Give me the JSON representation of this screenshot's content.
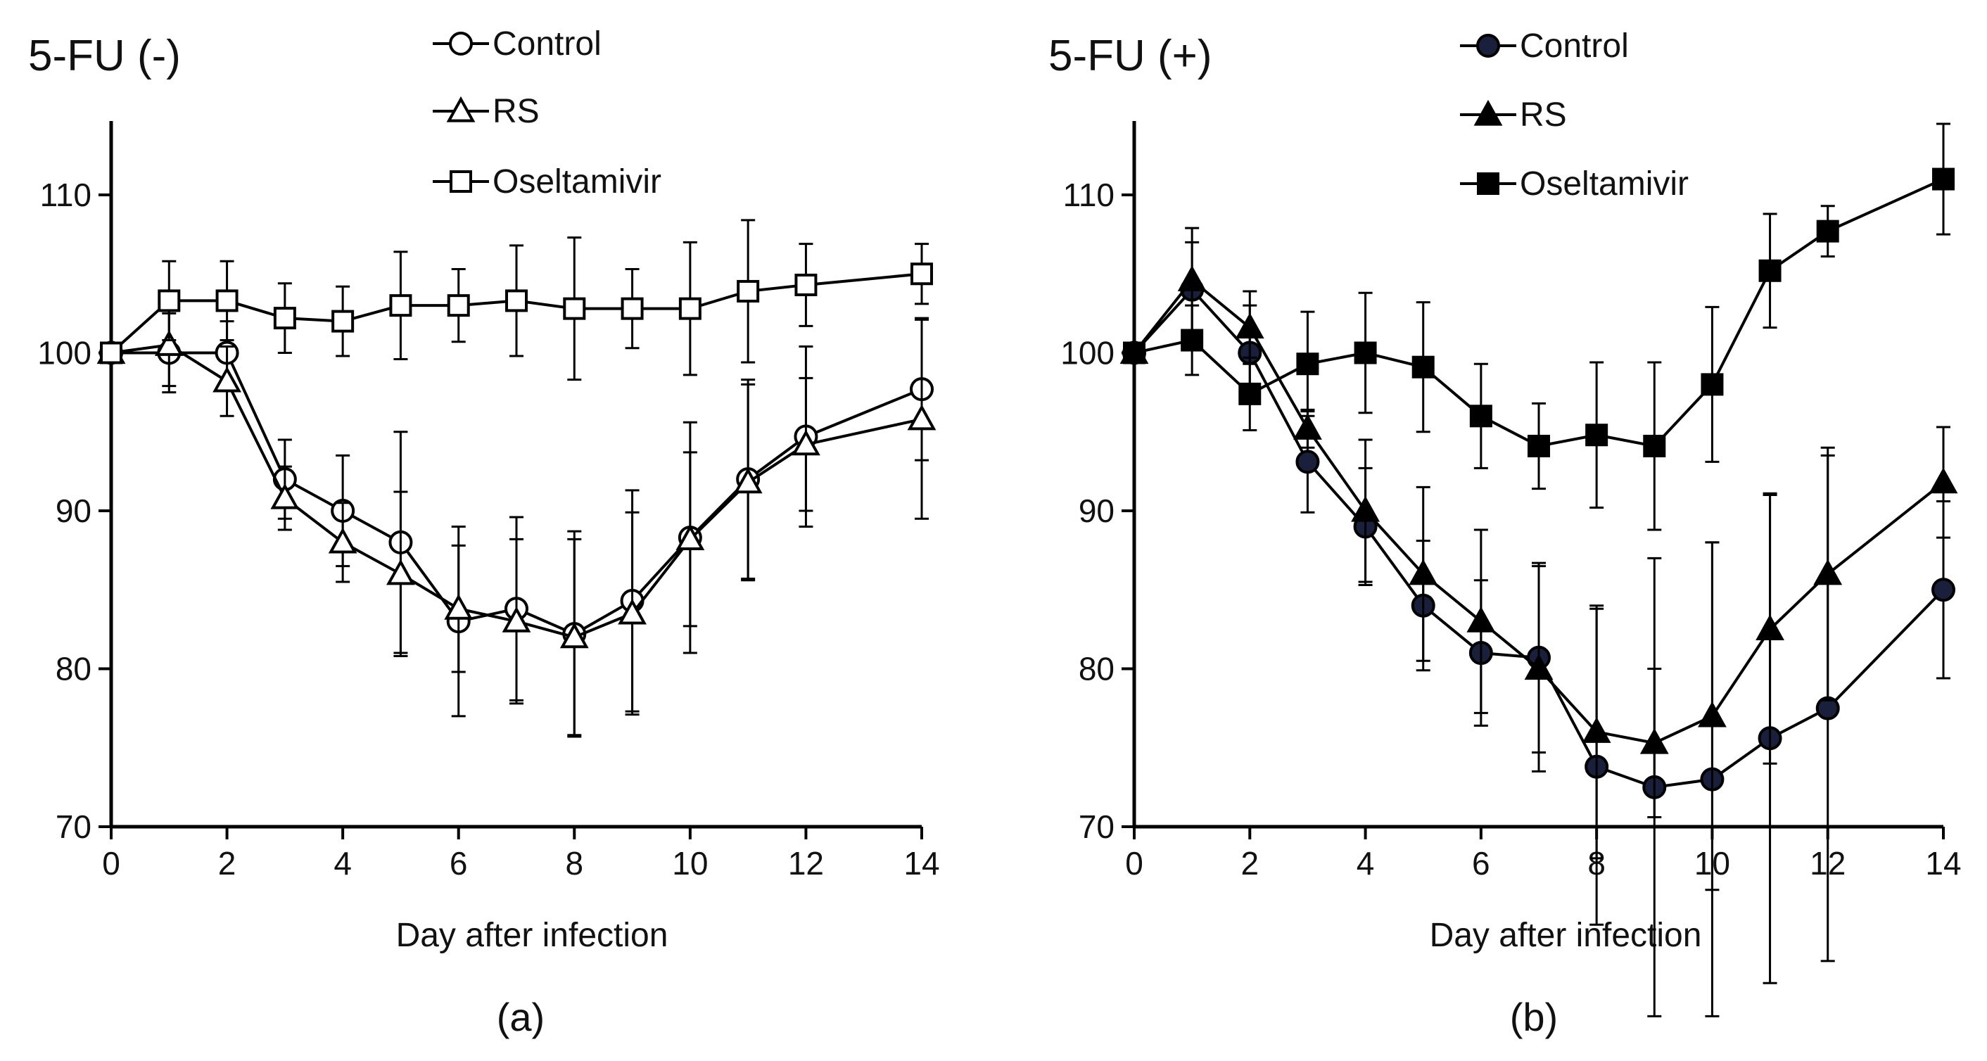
{
  "chart_data": [
    {
      "type": "line",
      "panel_label": "(a)",
      "title": "5-FU (-)",
      "xlabel": "Day after infection",
      "ylabel": "",
      "xlim": [
        0,
        14
      ],
      "ylim": [
        70,
        115
      ],
      "xticks": [
        0,
        2,
        4,
        6,
        8,
        10,
        12,
        14
      ],
      "yticks": [
        70,
        80,
        90,
        100,
        110
      ],
      "grid": false,
      "legend_position": "top-center",
      "series": [
        {
          "name": "Control",
          "marker": "circle",
          "filled": false,
          "color": "#000000",
          "x": [
            0,
            1,
            2,
            3,
            4,
            5,
            6,
            7,
            8,
            9,
            10,
            11,
            12,
            14
          ],
          "values": [
            100,
            100,
            100,
            92,
            90,
            88,
            83,
            83.8,
            82.2,
            84.3,
            88.3,
            92,
            94.7,
            97.7
          ],
          "error": [
            0,
            2.5,
            2,
            2.5,
            3.5,
            7,
            6,
            5.8,
            6.5,
            7,
            7.3,
            6.3,
            5.7,
            4.5
          ]
        },
        {
          "name": "RS",
          "marker": "triangle",
          "filled": false,
          "color": "#000000",
          "x": [
            0,
            1,
            2,
            3,
            4,
            5,
            6,
            7,
            8,
            9,
            10,
            11,
            12,
            14
          ],
          "values": [
            100,
            100.5,
            98.2,
            90.8,
            88,
            86,
            83.8,
            83,
            82,
            83.5,
            88.2,
            91.8,
            94.2,
            95.8
          ],
          "error": [
            0,
            2.6,
            2.2,
            2,
            2.5,
            5.2,
            4,
            5.2,
            6.2,
            6.4,
            5.5,
            6.2,
            4.2,
            6.3
          ]
        },
        {
          "name": "Oseltamivir",
          "marker": "square",
          "filled": false,
          "color": "#000000",
          "x": [
            0,
            1,
            2,
            3,
            4,
            5,
            6,
            7,
            8,
            9,
            10,
            11,
            12,
            14
          ],
          "values": [
            100,
            103.3,
            103.3,
            102.2,
            102,
            103,
            103,
            103.3,
            102.8,
            102.8,
            102.8,
            103.9,
            104.3,
            105
          ],
          "error": [
            0,
            2.5,
            2.5,
            2.2,
            2.2,
            3.4,
            2.3,
            3.5,
            4.5,
            2.5,
            4.2,
            4.5,
            2.6,
            1.9
          ]
        }
      ]
    },
    {
      "type": "line",
      "panel_label": "(b)",
      "title": "5-FU (+)",
      "xlabel": "Day after infection",
      "ylabel": "",
      "xlim": [
        0,
        14
      ],
      "ylim": [
        70,
        115
      ],
      "xticks": [
        0,
        2,
        4,
        6,
        8,
        10,
        12,
        14
      ],
      "yticks": [
        70,
        80,
        90,
        100,
        110
      ],
      "grid": false,
      "legend_position": "top-center",
      "series": [
        {
          "name": "Control",
          "marker": "circle",
          "filled": true,
          "color": "#1a1f3c",
          "x": [
            0,
            1,
            2,
            3,
            4,
            5,
            6,
            7,
            8,
            9,
            10,
            11,
            12,
            14
          ],
          "values": [
            100,
            104,
            100,
            93.1,
            89,
            84,
            81,
            80.7,
            73.8,
            72.5,
            73,
            75.6,
            77.5,
            85
          ],
          "error": [
            0,
            3,
            3,
            3.2,
            3.7,
            4.1,
            4.6,
            6,
            10,
            14.5,
            15,
            15.5,
            16,
            5.6
          ]
        },
        {
          "name": "RS",
          "marker": "triangle",
          "filled": true,
          "color": "#000000",
          "x": [
            0,
            1,
            2,
            3,
            4,
            5,
            6,
            7,
            8,
            9,
            10,
            11,
            12,
            14
          ],
          "values": [
            100,
            104.6,
            101.6,
            95.2,
            90,
            86,
            83,
            80,
            76,
            75.3,
            77,
            82.5,
            86,
            91.8
          ],
          "error": [
            0,
            3.3,
            2.3,
            1.2,
            4.5,
            5.5,
            5.8,
            6.5,
            8,
            4.7,
            11,
            8.5,
            8,
            3.5
          ]
        },
        {
          "name": "Oseltamivir",
          "marker": "square",
          "filled": true,
          "color": "#000000",
          "x": [
            0,
            1,
            2,
            3,
            4,
            5,
            6,
            7,
            8,
            9,
            10,
            11,
            12,
            14
          ],
          "values": [
            100,
            100.8,
            97.4,
            99.3,
            100,
            99.1,
            96,
            94.1,
            94.8,
            94.1,
            98,
            105.2,
            107.7,
            111
          ],
          "error": [
            0,
            2.2,
            2.3,
            3.3,
            3.8,
            4.1,
            3.3,
            2.7,
            4.6,
            5.3,
            4.9,
            3.6,
            1.6,
            3.5
          ]
        }
      ]
    }
  ]
}
